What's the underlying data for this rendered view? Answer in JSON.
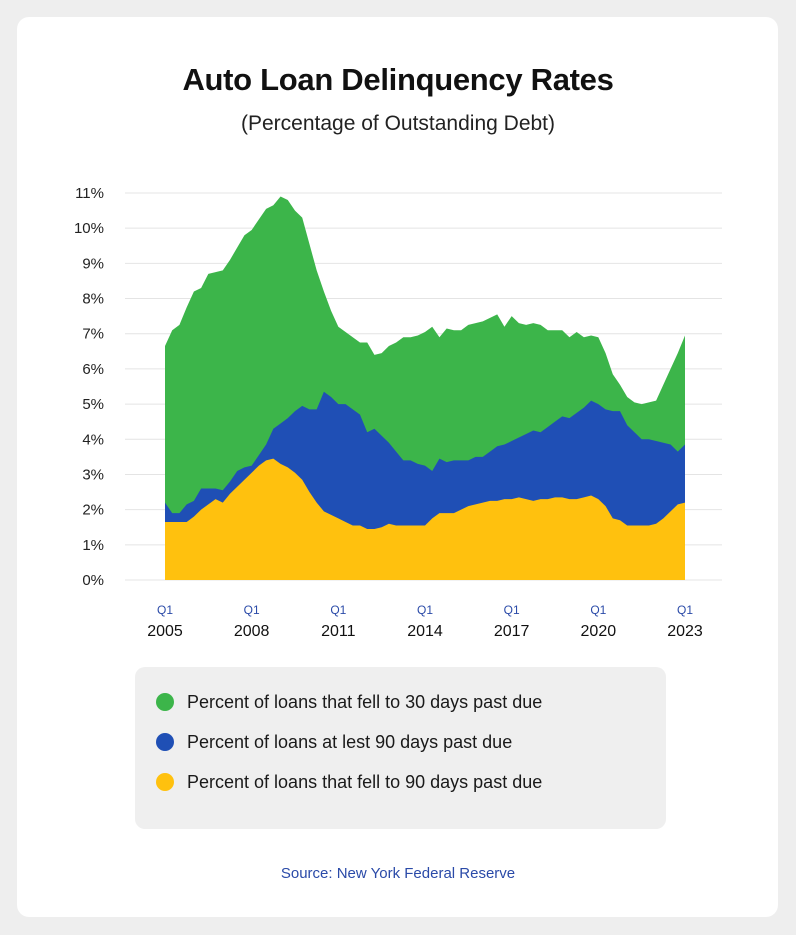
{
  "header": {
    "title": "Auto Loan Delinquency Rates",
    "subtitle": "(Percentage of Outstanding Debt)"
  },
  "footer": {
    "source": "Source: New York Federal Reserve"
  },
  "legend": {
    "items": [
      {
        "label": "Percent of loans that fell to 30 days past due",
        "color": "#3cb54a"
      },
      {
        "label": "Percent of loans at lest 90 days past due",
        "color": "#1f4fb5"
      },
      {
        "label": "Percent of loans that fell to 90 days past due",
        "color": "#ffc10e"
      }
    ]
  },
  "chart_data": {
    "type": "area",
    "title": "Auto Loan Delinquency Rates",
    "subtitle": "(Percentage of Outstanding Debt)",
    "ylim": [
      0,
      11
    ],
    "y_ticks": [
      "0%",
      "1%",
      "2%",
      "3%",
      "4%",
      "5%",
      "6%",
      "7%",
      "8%",
      "9%",
      "10%",
      "11%"
    ],
    "x_ticks": [
      {
        "quarter": "Q1",
        "year": "2005"
      },
      {
        "quarter": "Q1",
        "year": "2008"
      },
      {
        "quarter": "Q1",
        "year": "2011"
      },
      {
        "quarter": "Q1",
        "year": "2014"
      },
      {
        "quarter": "Q1",
        "year": "2017"
      },
      {
        "quarter": "Q1",
        "year": "2020"
      },
      {
        "quarter": "Q1",
        "year": "2023"
      }
    ],
    "grid": true,
    "legend_position": "bottom",
    "x": [
      2005.0,
      2005.25,
      2005.5,
      2005.75,
      2006.0,
      2006.25,
      2006.5,
      2006.75,
      2007.0,
      2007.25,
      2007.5,
      2007.75,
      2008.0,
      2008.25,
      2008.5,
      2008.75,
      2009.0,
      2009.25,
      2009.5,
      2009.75,
      2010.0,
      2010.25,
      2010.5,
      2010.75,
      2011.0,
      2011.25,
      2011.5,
      2011.75,
      2012.0,
      2012.25,
      2012.5,
      2012.75,
      2013.0,
      2013.25,
      2013.5,
      2013.75,
      2014.0,
      2014.25,
      2014.5,
      2014.75,
      2015.0,
      2015.25,
      2015.5,
      2015.75,
      2016.0,
      2016.25,
      2016.5,
      2016.75,
      2017.0,
      2017.25,
      2017.5,
      2017.75,
      2018.0,
      2018.25,
      2018.5,
      2018.75,
      2019.0,
      2019.25,
      2019.5,
      2019.75,
      2020.0,
      2020.25,
      2020.5,
      2020.75,
      2021.0,
      2021.25,
      2021.5,
      2021.75,
      2022.0,
      2022.25,
      2022.5,
      2022.75,
      2023.0
    ],
    "series": [
      {
        "name": "Percent of loans that fell to 30 days past due",
        "color": "#3cb54a",
        "values": [
          6.65,
          7.1,
          7.25,
          7.75,
          8.2,
          8.3,
          8.7,
          8.75,
          8.8,
          9.1,
          9.45,
          9.8,
          9.95,
          10.25,
          10.55,
          10.65,
          10.9,
          10.8,
          10.5,
          10.3,
          9.55,
          8.8,
          8.2,
          7.65,
          7.2,
          7.05,
          6.9,
          6.75,
          6.75,
          6.4,
          6.45,
          6.65,
          6.75,
          6.9,
          6.9,
          6.95,
          7.05,
          7.2,
          6.9,
          7.15,
          7.1,
          7.1,
          7.25,
          7.3,
          7.35,
          7.45,
          7.55,
          7.2,
          7.5,
          7.3,
          7.25,
          7.3,
          7.25,
          7.1,
          7.1,
          7.1,
          6.9,
          7.05,
          6.9,
          6.95,
          6.9,
          6.45,
          5.85,
          5.55,
          5.2,
          5.05,
          5.0,
          5.05,
          5.1,
          5.55,
          6.0,
          6.45,
          6.95
        ]
      },
      {
        "name": "Percent of loans at lest 90 days past due",
        "color": "#1f4fb5",
        "values": [
          2.2,
          1.9,
          1.9,
          2.15,
          2.25,
          2.6,
          2.6,
          2.6,
          2.55,
          2.8,
          3.1,
          3.2,
          3.25,
          3.55,
          3.85,
          4.3,
          4.45,
          4.6,
          4.8,
          4.95,
          4.85,
          4.85,
          5.35,
          5.2,
          5.0,
          5.0,
          4.85,
          4.7,
          4.2,
          4.3,
          4.1,
          3.9,
          3.65,
          3.4,
          3.4,
          3.3,
          3.25,
          3.1,
          3.45,
          3.35,
          3.4,
          3.4,
          3.4,
          3.5,
          3.5,
          3.65,
          3.8,
          3.85,
          3.95,
          4.05,
          4.15,
          4.25,
          4.2,
          4.35,
          4.5,
          4.65,
          4.6,
          4.75,
          4.9,
          5.1,
          5.0,
          4.85,
          4.8,
          4.8,
          4.4,
          4.2,
          4.0,
          4.0,
          3.95,
          3.9,
          3.85,
          3.65,
          3.85
        ]
      },
      {
        "name": "Percent of loans that fell to 90 days past due",
        "color": "#ffc10e",
        "values": [
          1.65,
          1.65,
          1.65,
          1.65,
          1.8,
          2.0,
          2.15,
          2.3,
          2.2,
          2.45,
          2.65,
          2.85,
          3.05,
          3.25,
          3.4,
          3.45,
          3.3,
          3.2,
          3.05,
          2.85,
          2.5,
          2.2,
          1.95,
          1.85,
          1.75,
          1.65,
          1.55,
          1.55,
          1.45,
          1.45,
          1.5,
          1.6,
          1.55,
          1.55,
          1.55,
          1.55,
          1.55,
          1.75,
          1.9,
          1.9,
          1.9,
          2.0,
          2.1,
          2.15,
          2.2,
          2.25,
          2.25,
          2.3,
          2.3,
          2.35,
          2.3,
          2.25,
          2.3,
          2.3,
          2.35,
          2.35,
          2.3,
          2.3,
          2.35,
          2.4,
          2.3,
          2.1,
          1.75,
          1.7,
          1.55,
          1.55,
          1.55,
          1.55,
          1.6,
          1.75,
          1.95,
          2.15,
          2.2
        ]
      }
    ]
  }
}
